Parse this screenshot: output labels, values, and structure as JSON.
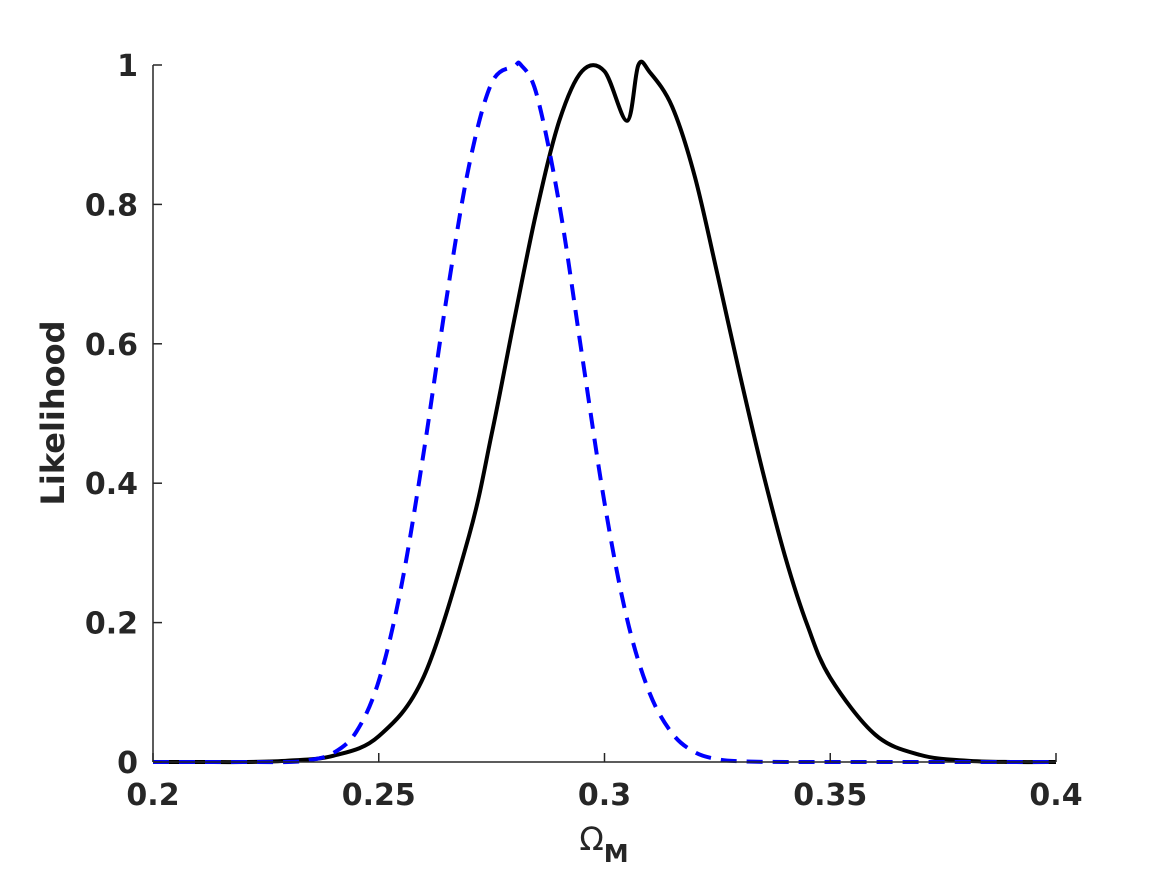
{
  "chart_data": {
    "type": "line",
    "title": "",
    "xlabel": "Ω",
    "xlabel_subscript": "M",
    "ylabel": "Likelihood",
    "xlim": [
      0.2,
      0.4
    ],
    "ylim": [
      0,
      1
    ],
    "xticks": [
      0.2,
      0.25,
      0.3,
      0.35,
      0.4
    ],
    "xtick_labels": [
      "0.2",
      "0.25",
      "0.3",
      "0.35",
      "0.4"
    ],
    "yticks": [
      0,
      0.2,
      0.4,
      0.6,
      0.8,
      1
    ],
    "ytick_labels": [
      "0",
      "0.2",
      "0.4",
      "0.6",
      "0.8",
      "1"
    ],
    "grid": false,
    "legend": "none",
    "series": [
      {
        "color": "#000000",
        "line_style": "solid",
        "x": [
          0.2,
          0.21,
          0.22,
          0.23,
          0.24,
          0.25,
          0.26,
          0.27,
          0.275,
          0.28,
          0.285,
          0.29,
          0.295,
          0.3,
          0.305,
          0.3075,
          0.31,
          0.315,
          0.32,
          0.325,
          0.33,
          0.335,
          0.34,
          0.345,
          0.35,
          0.36,
          0.37,
          0.38,
          0.39,
          0.4
        ],
        "y": [
          0.0,
          0.0,
          0.0,
          0.002,
          0.009,
          0.037,
          0.123,
          0.325,
          0.47,
          0.634,
          0.792,
          0.92,
          0.991,
          0.991,
          0.92,
          1.0,
          0.99,
          0.94,
          0.84,
          0.7,
          0.555,
          0.418,
          0.295,
          0.195,
          0.121,
          0.039,
          0.01,
          0.002,
          0.0,
          0.0
        ]
      },
      {
        "color": "#0000ff",
        "line_style": "dashed",
        "x": [
          0.2,
          0.22,
          0.23,
          0.235,
          0.24,
          0.245,
          0.25,
          0.255,
          0.26,
          0.265,
          0.27,
          0.275,
          0.28,
          0.2815,
          0.285,
          0.29,
          0.295,
          0.3,
          0.305,
          0.31,
          0.315,
          0.32,
          0.325,
          0.33,
          0.34,
          0.35,
          0.4
        ],
        "y": [
          0.0,
          0.0,
          0.0,
          0.003,
          0.013,
          0.043,
          0.116,
          0.252,
          0.446,
          0.665,
          0.856,
          0.974,
          0.998,
          1.0,
          0.957,
          0.8,
          0.585,
          0.372,
          0.205,
          0.099,
          0.041,
          0.014,
          0.004,
          0.001,
          0.0,
          0.0,
          0.0
        ]
      }
    ]
  }
}
